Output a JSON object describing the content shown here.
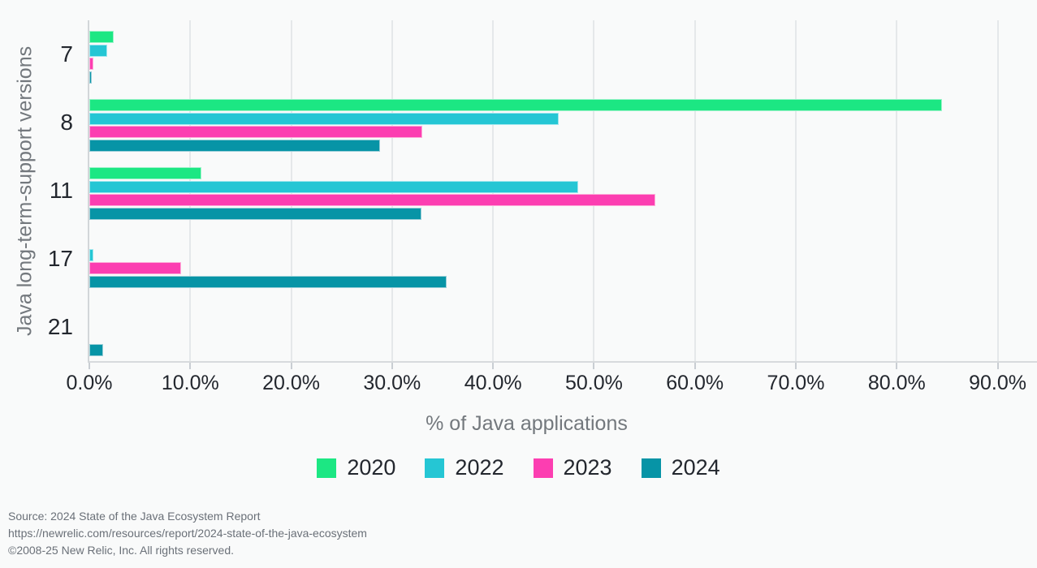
{
  "chart_data": {
    "type": "bar",
    "orientation": "horizontal",
    "title": "",
    "xlabel": "% of Java applications",
    "ylabel": "Java long-term-support versions",
    "categories": [
      "7",
      "8",
      "11",
      "17",
      "21"
    ],
    "series": [
      {
        "name": "2020",
        "color": "#1ce783",
        "border_color": "#9ff3cb",
        "values": [
          2.4,
          84.5,
          11.1,
          0,
          0
        ]
      },
      {
        "name": "2022",
        "color": "#25c6d4",
        "border_color": "#a0e7ee",
        "values": [
          1.8,
          46.5,
          48.4,
          0.4,
          0
        ]
      },
      {
        "name": "2023",
        "color": "#fc3eb1",
        "border_color": "#feadd9",
        "values": [
          0.4,
          33.0,
          56.1,
          9.1,
          0
        ]
      },
      {
        "name": "2024",
        "color": "#0794a6",
        "border_color": "#9ccfd8",
        "values": [
          0.2,
          28.8,
          32.9,
          35.4,
          1.4
        ]
      }
    ],
    "xlim": [
      0,
      91
    ],
    "xtick_step": 10,
    "xtick_labels": [
      "0.0%",
      "10.0%",
      "20.0%",
      "30.0%",
      "40.0%",
      "50.0%",
      "60.0%",
      "70.0%",
      "80.0%",
      "90.0%"
    ],
    "grid": true,
    "legend_position": "bottom"
  },
  "footer": {
    "line1": "Source: 2024 State of the Java Ecosystem Report",
    "line2": "https://newrelic.com/resources/report/2024-state-of-the-java-ecosystem",
    "line3": "©2008-25 New Relic, Inc. All rights reserved."
  }
}
